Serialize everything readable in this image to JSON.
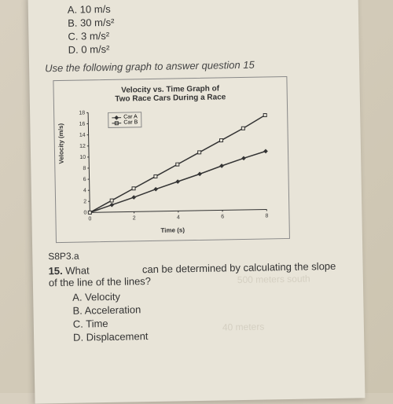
{
  "top_options": {
    "a": "A.  10 m/s",
    "b": "B.  30 m/s²",
    "c": "C.  3 m/s²",
    "d": "D.  0 m/s²"
  },
  "instruction": "Use the following graph to answer question 15",
  "chart": {
    "type": "line",
    "title_line1": "Velocity vs. Time Graph of",
    "title_line2": "Two Race Cars During a Race",
    "y_label": "Velocity (m/s)",
    "x_label": "Time (s)",
    "xlim": [
      0,
      8
    ],
    "ylim": [
      0,
      18
    ],
    "x_ticks": [
      0,
      2,
      4,
      6,
      8
    ],
    "y_ticks": [
      0,
      2,
      4,
      6,
      8,
      10,
      12,
      14,
      16,
      18
    ],
    "series": [
      {
        "name": "Car A",
        "marker": "diamond",
        "color": "#333333",
        "points": [
          [
            0,
            0
          ],
          [
            1,
            1.3
          ],
          [
            2,
            2.6
          ],
          [
            3,
            4
          ],
          [
            4,
            5.3
          ],
          [
            5,
            6.6
          ],
          [
            6,
            8
          ],
          [
            7,
            9.3
          ],
          [
            8,
            10.5
          ]
        ]
      },
      {
        "name": "Car B",
        "marker": "square",
        "color": "#333333",
        "points": [
          [
            0,
            0
          ],
          [
            1,
            2.1
          ],
          [
            2,
            4.2
          ],
          [
            3,
            6.3
          ],
          [
            4,
            8.4
          ],
          [
            5,
            10.5
          ],
          [
            6,
            12.6
          ],
          [
            7,
            14.7
          ],
          [
            8,
            17
          ]
        ]
      }
    ],
    "grid_color": "#e0e0e0",
    "background_color": "#eae6da",
    "axis_color": "#333333",
    "line_width": 1.5,
    "marker_size": 4,
    "tick_fontsize": 7,
    "label_fontsize": 8,
    "title_fontsize": 10
  },
  "standard": "S8P3.a",
  "question": {
    "number": "15.",
    "text_before": "What",
    "text_after": "can be determined by calculating the slope of the line of the lines?",
    "options": {
      "a": "A.  Velocity",
      "b": "B.  Acceleration",
      "c": "C.  Time",
      "d": "D.  Displacement"
    }
  },
  "ghost": {
    "g1": "500 meters south",
    "g2": "40 meters"
  }
}
